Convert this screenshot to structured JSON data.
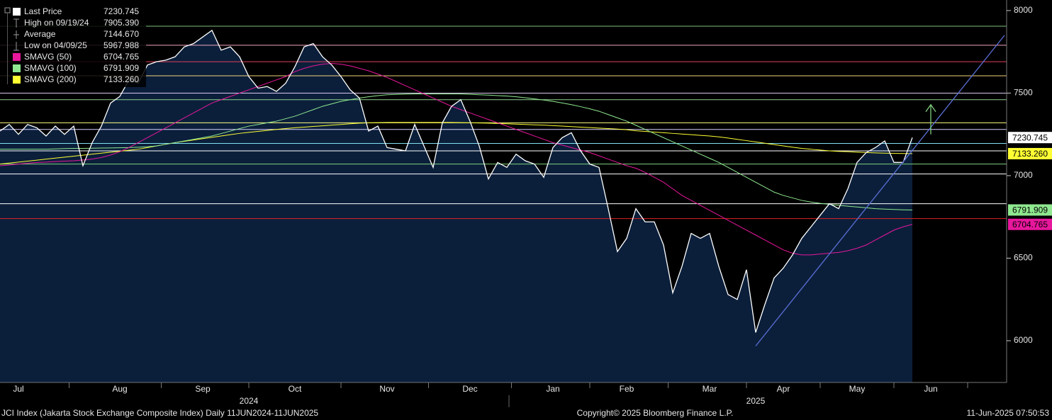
{
  "chart_data": {
    "type": "line",
    "footer": {
      "left": "JCI Index (Jakarta Stock Exchange Composite Index)  Daily 11JUN2024-11JUN2025",
      "center": "Copyright© 2025 Bloomberg Finance L.P.",
      "right": "11-Jun-2025 07:50:53"
    },
    "categories": [
      null,
      null,
      "Jul",
      null,
      null,
      null,
      null,
      null,
      null,
      null,
      null,
      null,
      null,
      "Aug",
      null,
      null,
      null,
      null,
      null,
      null,
      null,
      null,
      "Sep",
      null,
      null,
      null,
      null,
      null,
      null,
      null,
      null,
      null,
      "Oct",
      null,
      null,
      null,
      null,
      null,
      null,
      null,
      null,
      null,
      "Nov",
      null,
      null,
      null,
      null,
      null,
      null,
      null,
      null,
      "Dec",
      null,
      null,
      null,
      null,
      null,
      null,
      null,
      null,
      "Jan",
      null,
      null,
      null,
      null,
      null,
      null,
      null,
      "Feb",
      null,
      null,
      null,
      null,
      null,
      null,
      null,
      null,
      "Mar",
      null,
      null,
      null,
      null,
      null,
      null,
      null,
      "Apr",
      null,
      null,
      null,
      null,
      null,
      null,
      null,
      "May",
      null,
      null,
      null,
      null,
      null,
      null,
      null,
      "Jun",
      null,
      null,
      null,
      null,
      null,
      null,
      null,
      null
    ],
    "year_labels": [
      null,
      null,
      null,
      null,
      null,
      null,
      null,
      null,
      null,
      null,
      null,
      null,
      null,
      null,
      null,
      null,
      null,
      null,
      null,
      null,
      null,
      null,
      null,
      null,
      null,
      null,
      null,
      "2024",
      null,
      null,
      null,
      null,
      null,
      null,
      null,
      null,
      null,
      null,
      null,
      null,
      null,
      null,
      null,
      null,
      null,
      null,
      null,
      null,
      null,
      null,
      null,
      null,
      null,
      null,
      null,
      null,
      null,
      null,
      null,
      null,
      null,
      null,
      null,
      null,
      null,
      null,
      null,
      null,
      null,
      null,
      null,
      null,
      null,
      null,
      null,
      null,
      null,
      null,
      null,
      null,
      null,
      null,
      "2025",
      null,
      null,
      null,
      null,
      null,
      null,
      null,
      null,
      null,
      null,
      null,
      null,
      null,
      null,
      null,
      null,
      null,
      null,
      null,
      null,
      null,
      null,
      null,
      null,
      null,
      null,
      null
    ],
    "ylim": [
      5747,
      8064
    ],
    "yticks": [
      6000,
      6500,
      7000,
      7500,
      8000
    ],
    "series": [
      {
        "name": "Last Price",
        "color": "#ffffff",
        "value_label": "7230.745",
        "values": [
          7270,
          7310,
          7250,
          7310,
          7290,
          7240,
          7300,
          7250,
          7300,
          7060,
          7200,
          7300,
          7440,
          7480,
          7580,
          7560,
          7670,
          7690,
          7700,
          7720,
          7780,
          7800,
          7840,
          7880,
          7760,
          7780,
          7720,
          7600,
          7530,
          7540,
          7510,
          7560,
          7660,
          7780,
          7800,
          7720,
          7670,
          7600,
          7520,
          7470,
          7270,
          7300,
          7170,
          7160,
          7150,
          7310,
          7180,
          7050,
          7320,
          7420,
          7460,
          7330,
          7180,
          6980,
          7080,
          7050,
          7130,
          7090,
          7070,
          6990,
          7170,
          7230,
          7260,
          7150,
          7070,
          7050,
          6800,
          6540,
          6620,
          6800,
          6720,
          6720,
          6580,
          6290,
          6450,
          6650,
          6620,
          6650,
          6450,
          6280,
          6250,
          6430,
          6050,
          6220,
          6380,
          6440,
          6520,
          6620,
          6690,
          6760,
          6830,
          6800,
          6920,
          7080,
          7140,
          7170,
          7210,
          7080,
          7080,
          7230.745,
          null,
          null,
          null,
          null,
          null,
          null,
          null,
          null,
          null,
          null
        ]
      },
      {
        "name": "SMAVG (50)",
        "color": "#e8179c",
        "value_label": "6704.765",
        "values": [
          7060,
          7065,
          7070,
          7075,
          7080,
          7082,
          7085,
          7088,
          7090,
          7095,
          7100,
          7110,
          7125,
          7145,
          7170,
          7200,
          7230,
          7260,
          7290,
          7320,
          7350,
          7380,
          7410,
          7440,
          7460,
          7480,
          7500,
          7520,
          7540,
          7560,
          7580,
          7600,
          7630,
          7650,
          7665,
          7675,
          7680,
          7675,
          7665,
          7650,
          7635,
          7615,
          7595,
          7570,
          7545,
          7520,
          7495,
          7470,
          7445,
          7420,
          7400,
          7380,
          7360,
          7340,
          7320,
          7300,
          7280,
          7260,
          7240,
          7220,
          7200,
          7185,
          7170,
          7155,
          7140,
          7120,
          7100,
          7080,
          7060,
          7045,
          7020,
          6990,
          6960,
          6920,
          6880,
          6850,
          6820,
          6790,
          6760,
          6730,
          6700,
          6670,
          6640,
          6610,
          6580,
          6550,
          6530,
          6520,
          6520,
          6525,
          6530,
          6535,
          6545,
          6560,
          6580,
          6610,
          6640,
          6670,
          6690,
          6704.765,
          null,
          null,
          null,
          null,
          null,
          null,
          null,
          null,
          null,
          null
        ]
      },
      {
        "name": "SMAVG (100)",
        "color": "#8fe88f",
        "value_label": "6791.909",
        "values": [
          7160,
          7160,
          7160,
          7160,
          7160,
          7160,
          7162,
          7164,
          7165,
          7165,
          7166,
          7167,
          7168,
          7169,
          7170,
          7172,
          7175,
          7180,
          7190,
          7200,
          7210,
          7220,
          7230,
          7240,
          7255,
          7270,
          7285,
          7300,
          7310,
          7320,
          7330,
          7345,
          7360,
          7380,
          7400,
          7420,
          7435,
          7450,
          7460,
          7470,
          7478,
          7485,
          7490,
          7492,
          7494,
          7495,
          7495,
          7495,
          7495,
          7495,
          7495,
          7493,
          7490,
          7488,
          7485,
          7482,
          7478,
          7472,
          7465,
          7458,
          7450,
          7440,
          7430,
          7418,
          7405,
          7390,
          7370,
          7350,
          7330,
          7305,
          7280,
          7255,
          7230,
          7205,
          7180,
          7155,
          7130,
          7105,
          7080,
          7050,
          7020,
          6990,
          6960,
          6930,
          6900,
          6880,
          6865,
          6850,
          6840,
          6832,
          6826,
          6820,
          6815,
          6810,
          6805,
          6800,
          6797,
          6795,
          6793,
          6791.909,
          null,
          null,
          null,
          null,
          null,
          null,
          null,
          null,
          null,
          null
        ]
      },
      {
        "name": "SMAVG (200)",
        "color": "#ffff33",
        "value_label": "7133.260",
        "values": [
          7070,
          7076,
          7082,
          7088,
          7094,
          7100,
          7106,
          7112,
          7118,
          7124,
          7130,
          7136,
          7142,
          7148,
          7154,
          7160,
          7170,
          7180,
          7190,
          7200,
          7208,
          7216,
          7224,
          7232,
          7240,
          7248,
          7256,
          7262,
          7268,
          7274,
          7280,
          7285,
          7290,
          7294,
          7298,
          7302,
          7306,
          7310,
          7314,
          7318,
          7320,
          7321,
          7322,
          7322,
          7322,
          7322,
          7322,
          7322,
          7322,
          7322,
          7321,
          7320,
          7319,
          7318,
          7316,
          7314,
          7312,
          7310,
          7308,
          7306,
          7303,
          7300,
          7297,
          7294,
          7291,
          7288,
          7285,
          7282,
          7278,
          7272,
          7268,
          7264,
          7260,
          7256,
          7252,
          7248,
          7244,
          7240,
          7235,
          7228,
          7220,
          7212,
          7204,
          7196,
          7188,
          7180,
          7172,
          7165,
          7160,
          7155,
          7150,
          7147,
          7145,
          7142,
          7140,
          7138,
          7136,
          7135,
          7134,
          7133.26,
          null,
          null,
          null,
          null,
          null,
          null,
          null,
          null,
          null,
          null
        ]
      }
    ],
    "stats": [
      {
        "label": "High on 09/19/24",
        "value": "7905.390"
      },
      {
        "label": "Average",
        "value": "7144.670"
      },
      {
        "label": "Low on 04/09/25",
        "value": "5967.988"
      }
    ],
    "levels": [
      {
        "value": 7905,
        "color": "#7fbf7f"
      },
      {
        "value": 7790,
        "color": "#f4a6c0"
      },
      {
        "value": 7690,
        "color": "#e0405a"
      },
      {
        "value": 7605,
        "color": "#f5d27a"
      },
      {
        "value": 7500,
        "color": "#d8c8f0"
      },
      {
        "value": 7460,
        "color": "#8fd48f"
      },
      {
        "value": 7320,
        "color": "#ffff80"
      },
      {
        "value": 7280,
        "color": "#d8d0ff"
      },
      {
        "value": 7195,
        "color": "#80e0f0"
      },
      {
        "value": 7150,
        "color": "#ffffff"
      },
      {
        "value": 7070,
        "color": "#7fd07f"
      },
      {
        "value": 7010,
        "color": "#ffffff"
      },
      {
        "value": 6830,
        "color": "#ffffff"
      },
      {
        "value": 6740,
        "color": "#e02020"
      }
    ],
    "trendline": {
      "color": "#5b6fd6",
      "start": {
        "index": 82,
        "value": 5968
      },
      "end": {
        "index": 109,
        "value": 7850
      }
    },
    "arrow": {
      "color": "#7fcf7f",
      "index": 101,
      "from": 7250,
      "to": 7430
    },
    "area_color": "#0b1f3b"
  }
}
